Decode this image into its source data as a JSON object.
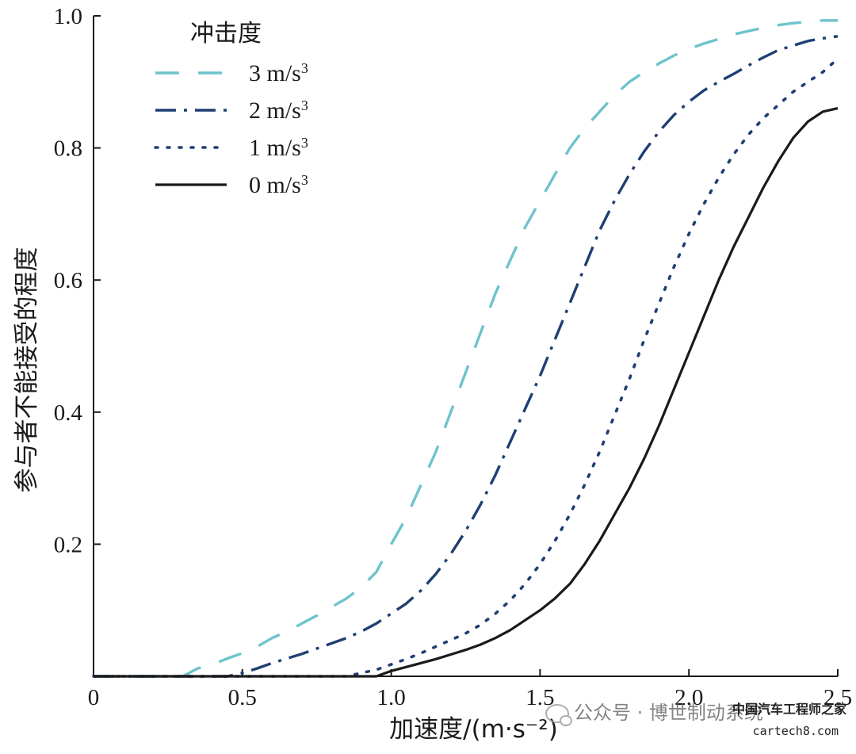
{
  "chart_data": {
    "type": "line",
    "xlabel": "加速度/(m·s⁻²)",
    "ylabel": "参与者不能接受的程度",
    "xlim": [
      0,
      2.5
    ],
    "ylim": [
      0,
      1.0
    ],
    "x_ticks": [
      "0",
      "0.5",
      "1.0",
      "1.5",
      "2.0",
      "2.5"
    ],
    "y_ticks": [
      "0.2",
      "0.4",
      "0.6",
      "0.8",
      "1.0"
    ],
    "x_tick_values": [
      0,
      0.5,
      1.0,
      1.5,
      2.0,
      2.5
    ],
    "y_tick_values": [
      0.2,
      0.4,
      0.6,
      0.8,
      1.0
    ],
    "grid": false,
    "legend": {
      "title": "冲击度",
      "position": "top-left"
    },
    "series": [
      {
        "name": "3 m/s",
        "name_sup": "3",
        "color": "#6ec3cc",
        "dash": "long-dash",
        "x": [
          0.0,
          0.3,
          0.35,
          0.4,
          0.45,
          0.5,
          0.55,
          0.6,
          0.65,
          0.7,
          0.75,
          0.8,
          0.85,
          0.9,
          0.95,
          1.0,
          1.05,
          1.1,
          1.15,
          1.2,
          1.25,
          1.3,
          1.35,
          1.4,
          1.45,
          1.5,
          1.55,
          1.6,
          1.65,
          1.7,
          1.75,
          1.8,
          1.85,
          1.9,
          1.95,
          2.0,
          2.05,
          2.1,
          2.15,
          2.2,
          2.25,
          2.3,
          2.35,
          2.4,
          2.45,
          2.5
        ],
        "y": [
          0.0,
          0.0,
          0.012,
          0.018,
          0.027,
          0.035,
          0.045,
          0.058,
          0.068,
          0.08,
          0.092,
          0.105,
          0.118,
          0.135,
          0.158,
          0.2,
          0.24,
          0.29,
          0.34,
          0.4,
          0.46,
          0.52,
          0.58,
          0.63,
          0.68,
          0.72,
          0.76,
          0.8,
          0.83,
          0.855,
          0.88,
          0.9,
          0.915,
          0.928,
          0.94,
          0.95,
          0.958,
          0.965,
          0.972,
          0.977,
          0.982,
          0.986,
          0.989,
          0.991,
          0.993,
          0.993
        ]
      },
      {
        "name": "2 m/s",
        "name_sup": "3",
        "color": "#1f3f73",
        "dash": "dash-dot",
        "x": [
          0.0,
          0.45,
          0.5,
          0.55,
          0.6,
          0.65,
          0.7,
          0.75,
          0.8,
          0.85,
          0.9,
          0.95,
          1.0,
          1.05,
          1.1,
          1.15,
          1.2,
          1.25,
          1.3,
          1.35,
          1.4,
          1.45,
          1.5,
          1.55,
          1.6,
          1.65,
          1.7,
          1.75,
          1.8,
          1.85,
          1.9,
          1.95,
          2.0,
          2.05,
          2.1,
          2.15,
          2.2,
          2.25,
          2.3,
          2.35,
          2.4,
          2.45,
          2.5
        ],
        "y": [
          0.0,
          0.0,
          0.005,
          0.012,
          0.02,
          0.027,
          0.034,
          0.042,
          0.05,
          0.058,
          0.068,
          0.08,
          0.095,
          0.11,
          0.13,
          0.155,
          0.185,
          0.22,
          0.26,
          0.305,
          0.355,
          0.405,
          0.455,
          0.51,
          0.565,
          0.62,
          0.675,
          0.72,
          0.76,
          0.795,
          0.825,
          0.85,
          0.87,
          0.887,
          0.9,
          0.912,
          0.925,
          0.937,
          0.948,
          0.955,
          0.962,
          0.966,
          0.969
        ]
      },
      {
        "name": "1 m/s",
        "name_sup": "3",
        "color": "#1f3f73",
        "dash": "dotted",
        "x": [
          0.0,
          0.85,
          0.9,
          0.95,
          1.0,
          1.05,
          1.1,
          1.15,
          1.2,
          1.25,
          1.3,
          1.35,
          1.4,
          1.45,
          1.5,
          1.55,
          1.6,
          1.65,
          1.7,
          1.75,
          1.8,
          1.85,
          1.9,
          1.95,
          2.0,
          2.05,
          2.1,
          2.15,
          2.2,
          2.25,
          2.3,
          2.35,
          2.4,
          2.45,
          2.5
        ],
        "y": [
          0.0,
          0.0,
          0.005,
          0.01,
          0.018,
          0.026,
          0.035,
          0.045,
          0.055,
          0.065,
          0.078,
          0.095,
          0.115,
          0.14,
          0.17,
          0.205,
          0.245,
          0.29,
          0.34,
          0.395,
          0.45,
          0.51,
          0.565,
          0.62,
          0.67,
          0.715,
          0.755,
          0.79,
          0.82,
          0.845,
          0.865,
          0.885,
          0.9,
          0.915,
          0.935
        ]
      },
      {
        "name": "0 m/s",
        "name_sup": "3",
        "color": "#1a1a1a",
        "dash": "solid",
        "x": [
          0.0,
          0.95,
          1.0,
          1.05,
          1.1,
          1.15,
          1.2,
          1.25,
          1.3,
          1.35,
          1.4,
          1.45,
          1.5,
          1.55,
          1.6,
          1.65,
          1.7,
          1.75,
          1.8,
          1.85,
          1.9,
          1.95,
          2.0,
          2.05,
          2.1,
          2.15,
          2.2,
          2.25,
          2.3,
          2.35,
          2.4,
          2.45,
          2.5
        ],
        "y": [
          0.0,
          0.0,
          0.008,
          0.014,
          0.02,
          0.026,
          0.033,
          0.04,
          0.048,
          0.058,
          0.07,
          0.085,
          0.1,
          0.118,
          0.14,
          0.17,
          0.205,
          0.245,
          0.285,
          0.33,
          0.38,
          0.435,
          0.49,
          0.545,
          0.6,
          0.65,
          0.695,
          0.74,
          0.78,
          0.815,
          0.84,
          0.855,
          0.86
        ]
      }
    ]
  },
  "watermark": {
    "account": "公众号 · 博世制动系统",
    "site_cn": "中国汽车工程师之家",
    "site_url": "cartech8.com"
  }
}
